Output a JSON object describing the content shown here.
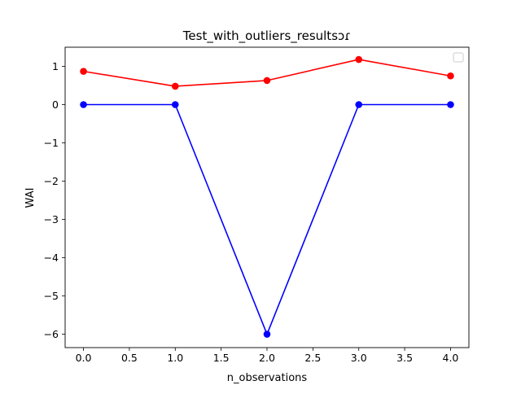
{
  "chart_data": {
    "type": "line",
    "title": "Test_with_outliers_resultsɔɾ",
    "xlabel": "n_observations",
    "ylabel": "WAI",
    "xlim": [
      -0.2,
      4.2
    ],
    "ylim": [
      -6.35,
      1.5
    ],
    "x_ticks": [
      0.0,
      0.5,
      1.0,
      1.5,
      2.0,
      2.5,
      3.0,
      3.5,
      4.0
    ],
    "x_tick_labels": [
      "0.0",
      "0.5",
      "1.0",
      "1.5",
      "2.0",
      "2.5",
      "3.0",
      "3.5",
      "4.0"
    ],
    "y_ticks": [
      1,
      0,
      -1,
      -2,
      -3,
      -4,
      -5,
      -6
    ],
    "y_tick_labels": [
      "1",
      "0",
      "−1",
      "−2",
      "−3",
      "−4",
      "−5",
      "−6"
    ],
    "grid": false,
    "legend": {
      "placement": "top-right",
      "entries": []
    },
    "x": [
      0,
      1,
      2,
      3,
      4
    ],
    "series": [
      {
        "color": "#ff0000",
        "marker": "circle",
        "values": [
          0.87,
          0.48,
          0.63,
          1.18,
          0.75
        ]
      },
      {
        "color": "#0000ff",
        "marker": "circle",
        "values": [
          0,
          0,
          -6,
          0,
          0
        ]
      }
    ]
  }
}
